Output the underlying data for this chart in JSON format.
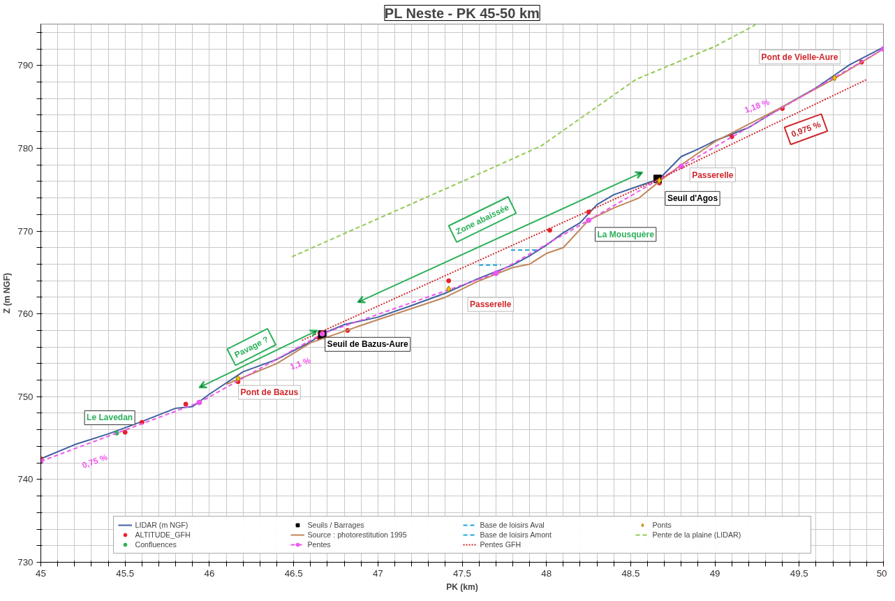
{
  "chart_data": {
    "type": "line",
    "title": "PL Neste - PK 45-50 km",
    "xlabel": "PK (km)",
    "ylabel": "Z (m NGF)",
    "xlim": [
      45,
      50
    ],
    "ylim": [
      730,
      795
    ],
    "xticks": [
      45,
      {
        "value": 45.1,
        "label": null
      },
      {
        "value": 45.2,
        "label": null
      },
      {
        "value": 45.3,
        "label": null
      },
      {
        "value": 45.4,
        "label": null
      },
      45.5,
      {
        "value": 45.6,
        "label": null
      },
      {
        "value": 45.7,
        "label": null
      },
      {
        "value": 45.8,
        "label": null
      },
      {
        "value": 45.9,
        "label": null
      },
      46,
      {
        "value": 46.1,
        "label": null
      },
      {
        "value": 46.2,
        "label": null
      },
      {
        "value": 46.3,
        "label": null
      },
      {
        "value": 46.4,
        "label": null
      },
      46.5,
      {
        "value": 46.6,
        "label": null
      },
      {
        "value": 46.7,
        "label": null
      },
      {
        "value": 46.8,
        "label": null
      },
      {
        "value": 46.9,
        "label": null
      },
      47,
      {
        "value": 47.1,
        "label": null
      },
      {
        "value": 47.2,
        "label": null
      },
      {
        "value": 47.3,
        "label": null
      },
      {
        "value": 47.4,
        "label": null
      },
      47.5,
      {
        "value": 47.6,
        "label": null
      },
      {
        "value": 47.7,
        "label": null
      },
      {
        "value": 47.8,
        "label": null
      },
      {
        "value": 47.9,
        "label": null
      },
      48,
      {
        "value": 48.1,
        "label": null
      },
      {
        "value": 48.2,
        "label": null
      },
      {
        "value": 48.3,
        "label": null
      },
      {
        "value": 48.4,
        "label": null
      },
      48.5,
      {
        "value": 48.6,
        "label": null
      },
      {
        "value": 48.7,
        "label": null
      },
      {
        "value": 48.8,
        "label": null
      },
      {
        "value": 48.9,
        "label": null
      },
      49,
      {
        "value": 49.1,
        "label": null
      },
      {
        "value": 49.2,
        "label": null
      },
      {
        "value": 49.3,
        "label": null
      },
      {
        "value": 49.4,
        "label": null
      },
      49.5,
      {
        "value": 49.6,
        "label": null
      },
      {
        "value": 49.7,
        "label": null
      },
      {
        "value": 49.8,
        "label": null
      },
      {
        "value": 49.9,
        "label": null
      },
      50
    ],
    "yticks": [
      730,
      {
        "value": 732,
        "label": null
      },
      {
        "value": 734,
        "label": null
      },
      {
        "value": 736,
        "label": null
      },
      {
        "value": 738,
        "label": null
      },
      740,
      {
        "value": 742,
        "label": null
      },
      {
        "value": 744,
        "label": null
      },
      {
        "value": 746,
        "label": null
      },
      {
        "value": 748,
        "label": null
      },
      750,
      {
        "value": 752,
        "label": null
      },
      {
        "value": 754,
        "label": null
      },
      {
        "value": 756,
        "label": null
      },
      {
        "value": 758,
        "label": null
      },
      760,
      {
        "value": 762,
        "label": null
      },
      {
        "value": 764,
        "label": null
      },
      {
        "value": 766,
        "label": null
      },
      {
        "value": 768,
        "label": null
      },
      770,
      {
        "value": 772,
        "label": null
      },
      {
        "value": 774,
        "label": null
      },
      {
        "value": 776,
        "label": null
      },
      {
        "value": 778,
        "label": null
      },
      780,
      {
        "value": 782,
        "label": null
      },
      {
        "value": 784,
        "label": null
      },
      {
        "value": 786,
        "label": null
      },
      {
        "value": 788,
        "label": null
      },
      790,
      {
        "value": 792,
        "label": null
      },
      {
        "value": 794,
        "label": null
      }
    ],
    "grid": true,
    "legend": "bottom",
    "series": [
      {
        "name": "LIDAR (m NGF)",
        "color": "#3f5f9f",
        "line_style": "solid",
        "x": [
          45,
          45.2,
          45.4,
          45.6,
          45.8,
          45.9,
          46,
          46.2,
          46.4,
          46.6,
          46.67,
          46.8,
          47,
          47.2,
          47.4,
          47.6,
          47.8,
          47.9,
          48,
          48.1,
          48.2,
          48.3,
          48.4,
          48.5,
          48.67,
          48.8,
          48.9,
          49,
          49.2,
          49.4,
          49.6,
          49.7,
          49.8,
          50
        ],
        "values": [
          742.5,
          744.2,
          745.5,
          747,
          748.6,
          748.8,
          750.3,
          753,
          754.5,
          756.6,
          757.6,
          758.7,
          759.6,
          761,
          762.5,
          764.3,
          765.9,
          767,
          768.3,
          769.8,
          771,
          773.2,
          774.4,
          775.1,
          776.3,
          779,
          779.9,
          780.9,
          782.5,
          785,
          787.3,
          788.7,
          790.1,
          792.2
        ]
      },
      {
        "name": "ALTITUDE_GFH",
        "type": "scatter",
        "marker": "circle",
        "color": "#e8202a",
        "x": [
          45,
          45.5,
          45.6,
          45.86,
          46.17,
          46.65,
          46.82,
          47.42,
          48.02,
          48.25,
          48.67,
          49.1,
          49.4,
          49.87
        ],
        "values": [
          742.5,
          745.7,
          746.9,
          749.1,
          751.8,
          757.1,
          758,
          764,
          770.1,
          772.3,
          775.8,
          781.4,
          784.8,
          790.4
        ]
      },
      {
        "name": "Confluences",
        "type": "scatter",
        "marker": "circle",
        "color": "#2db05a",
        "x": [
          45.45
        ],
        "values": [
          745.6
        ]
      },
      {
        "name": "Seuils / Barrages",
        "type": "scatter",
        "marker": "square",
        "color": "#000000",
        "x": [
          46.67,
          48.66
        ],
        "values": [
          757.5,
          776.3
        ]
      },
      {
        "name": "Source : photorestitution 1995",
        "color": "#c0855a",
        "line_style": "solid",
        "x": [
          46.1,
          46.4,
          46.6,
          47,
          47.4,
          47.6,
          47.8,
          47.9,
          48,
          48.1,
          48.25,
          48.4,
          48.55,
          48.67,
          48.8,
          49,
          49.4,
          49.7,
          50
        ],
        "values": [
          751.5,
          754,
          756.5,
          759.3,
          762,
          764,
          765.6,
          766,
          767.3,
          768,
          771.3,
          772.8,
          774,
          776,
          778,
          780.8,
          785,
          788.3,
          792
        ]
      },
      {
        "name": "Pentes",
        "marker": "circle",
        "color": "#ee55ee",
        "line_style": "dashed",
        "x": [
          45,
          45.94,
          46.67,
          47.7,
          48.25,
          48.8,
          50
        ],
        "values": [
          742.2,
          749.3,
          757.6,
          764.9,
          771.3,
          777.8,
          792
        ]
      },
      {
        "name": "Base de loisirs Aval",
        "color": "#1fa4dc",
        "line_style": "dashed",
        "x": [
          47.6,
          47.73
        ],
        "values": [
          765.9,
          765.9
        ]
      },
      {
        "name": "Base de loisirs Amont",
        "color": "#1fa4dc",
        "line_style": "dashed",
        "x": [
          47.79,
          47.95
        ],
        "values": [
          767.7,
          767.7
        ]
      },
      {
        "name": "Pentes GFH",
        "color": "#d0262a",
        "line_style": "dotted",
        "x": [
          46.55,
          48.67,
          49.9
        ],
        "values": [
          756.8,
          776.3,
          788.3
        ]
      },
      {
        "name": "Ponts",
        "type": "scatter",
        "marker": "diamond",
        "color": "#f2c200",
        "x": [
          46.17,
          47.42,
          48.67,
          49.71
        ],
        "values": [
          752.2,
          763,
          776.1,
          788.5
        ]
      },
      {
        "name": "Pente de la plaine (LIDAR)",
        "color": "#92c850",
        "line_style": "dashed",
        "x": [
          46.49,
          47.49,
          47.97,
          48.53,
          49,
          49.24
        ],
        "values": [
          766.9,
          775.9,
          780.3,
          788.3,
          792.3,
          794.9
        ]
      }
    ],
    "annotations": [
      {
        "text": "Le Lavedan",
        "x": 45.45,
        "y": 745.6
      },
      {
        "text": "Pont de Bazus",
        "x": 46.17,
        "y": 752.2
      },
      {
        "text": "Seuil de Bazus-Aure",
        "x": 46.67,
        "y": 757.5
      },
      {
        "text": "Passerelle",
        "x": 47.42,
        "y": 763
      },
      "La Mousquère",
      {
        "text": "Seuil d'Agos",
        "x": 48.66,
        "y": 776.3
      },
      {
        "text": "Passerelle",
        "x": 48.8,
        "y": 777.8
      },
      {
        "text": "Pont de Vielle-Aure",
        "x": 49.71,
        "y": 788.5
      },
      "0,75 %",
      "1,1 %",
      "1,18 %",
      "0,975 %",
      "Pavage ?",
      "Zone abaissée"
    ]
  }
}
